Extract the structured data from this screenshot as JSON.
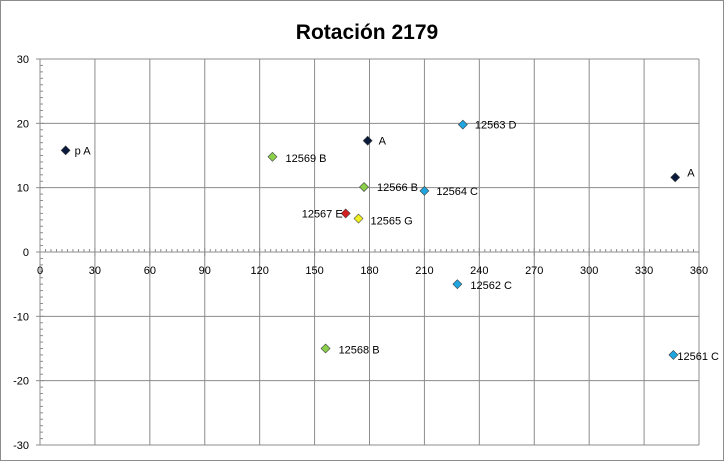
{
  "chart_data": {
    "type": "scatter",
    "title": "Rotación 2179",
    "xlabel": "",
    "ylabel": "",
    "xlim": [
      0,
      360
    ],
    "ylim": [
      -30,
      30
    ],
    "x_ticks": [
      0,
      30,
      60,
      90,
      120,
      150,
      180,
      210,
      240,
      270,
      300,
      330,
      360
    ],
    "y_ticks": [
      30,
      20,
      10,
      0,
      -10,
      -20,
      -30
    ],
    "grid": true,
    "legend": "none",
    "points": [
      {
        "label": "p A",
        "x": 14,
        "y": 15.8,
        "color": "#0a1a3a"
      },
      {
        "label": "A",
        "x": 179,
        "y": 17.3,
        "color": "#0a1a3a"
      },
      {
        "label": "A",
        "x": 347,
        "y": 11.6,
        "color": "#0a1a3a"
      },
      {
        "label": "12563 D",
        "x": 231,
        "y": 19.8,
        "color": "#1fa6e0"
      },
      {
        "label": "12569 B",
        "x": 127,
        "y": 14.8,
        "color": "#8bd04a"
      },
      {
        "label": "12566 B",
        "x": 177,
        "y": 10.1,
        "color": "#8bd04a"
      },
      {
        "label": "12564 C",
        "x": 210,
        "y": 9.5,
        "color": "#1fa6e0"
      },
      {
        "label": "12567 E",
        "x": 167,
        "y": 6.0,
        "color": "#d42020"
      },
      {
        "label": "12565 G",
        "x": 174,
        "y": 5.2,
        "color": "#f0f020"
      },
      {
        "label": "12562 C",
        "x": 228,
        "y": -5.0,
        "color": "#1fa6e0"
      },
      {
        "label": "12568 B",
        "x": 156,
        "y": -15.0,
        "color": "#8bd04a"
      },
      {
        "label": "12561 C",
        "x": 346,
        "y": -16.0,
        "color": "#1fa6e0"
      }
    ]
  }
}
